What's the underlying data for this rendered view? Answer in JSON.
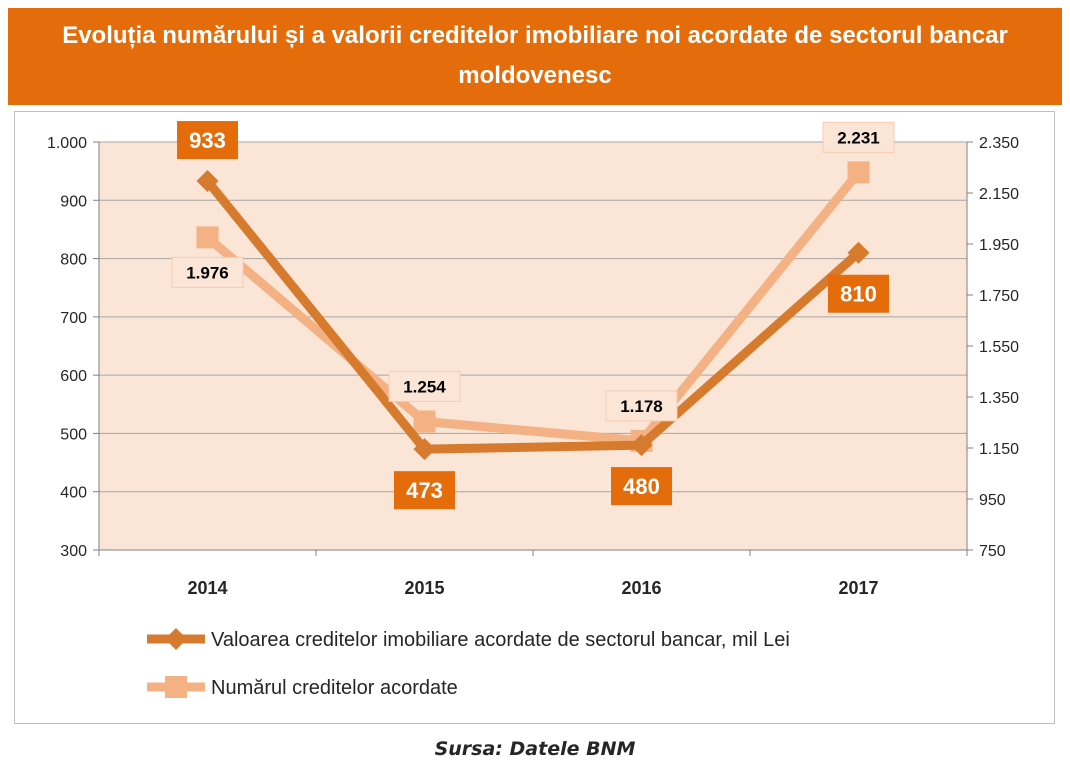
{
  "title": "Evoluția numărului și a valorii creditelor imobiliare noi acordate de sectorul bancar moldovenesc",
  "source": "Sursa: Datele BNM",
  "chart_data": {
    "type": "line",
    "categories": [
      "2014",
      "2015",
      "2016",
      "2017"
    ],
    "series": [
      {
        "name": "Valoarea creditelor imobiliare acordate de sectorul bancar, mil Lei",
        "axis": "left",
        "marker": "diamond",
        "color": "#d67b2e",
        "values": [
          933,
          473,
          480,
          810
        ],
        "labels": [
          "933",
          "473",
          "480",
          "810"
        ],
        "label_positions": [
          "above",
          "below",
          "below",
          "below"
        ]
      },
      {
        "name": "Numărul creditelor acordate",
        "axis": "right",
        "marker": "square",
        "color": "#f4b183",
        "values": [
          1976,
          1254,
          1178,
          2231
        ],
        "labels": [
          "1.976",
          "1.254",
          "1.178",
          "2.231"
        ],
        "label_positions": [
          "below",
          "above",
          "above",
          "above"
        ]
      }
    ],
    "y_left": {
      "range": [
        300,
        1000
      ],
      "ticks": [
        300,
        400,
        500,
        600,
        700,
        800,
        900,
        1000
      ],
      "tick_labels": [
        "300",
        "400",
        "500",
        "600",
        "700",
        "800",
        "900",
        "1.000"
      ]
    },
    "y_right": {
      "range": [
        750,
        2350
      ],
      "ticks": [
        750,
        950,
        1150,
        1350,
        1550,
        1750,
        1950,
        2150,
        2350
      ],
      "tick_labels": [
        "750",
        "950",
        "1.150",
        "1.350",
        "1.550",
        "1.750",
        "1.950",
        "2.150",
        "2.350"
      ]
    },
    "grid": "horizontal",
    "plot_background": "#fbe5d6",
    "legend": "bottom"
  }
}
